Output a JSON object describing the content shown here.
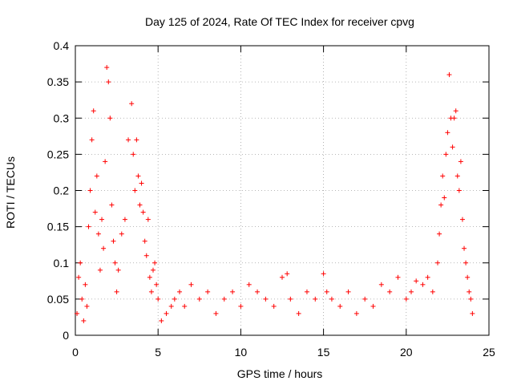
{
  "chart_data": {
    "type": "scatter",
    "title": "Day 125 of 2024, Rate Of TEC Index for receiver cpvg",
    "xlabel": "GPS time / hours",
    "ylabel": "ROTI / TECUs",
    "xlim": [
      0,
      25
    ],
    "ylim": [
      0,
      0.4
    ],
    "xticks": [
      0,
      5,
      10,
      15,
      20,
      25
    ],
    "xtick_labels": [
      "0",
      "5",
      "10",
      "15",
      "20",
      "25"
    ],
    "yticks": [
      0,
      0.05,
      0.1,
      0.15,
      0.2,
      0.25,
      0.3,
      0.35,
      0.4
    ],
    "ytick_labels": [
      "0",
      "0.05",
      "0.1",
      "0.15",
      "0.2",
      "0.25",
      "0.3",
      "0.35",
      "0.4"
    ],
    "grid": true,
    "marker": "+",
    "color": "#ff0000",
    "series": [
      {
        "name": "ROTI",
        "points": [
          [
            0.1,
            0.03
          ],
          [
            0.2,
            0.08
          ],
          [
            0.3,
            0.1
          ],
          [
            0.4,
            0.05
          ],
          [
            0.5,
            0.02
          ],
          [
            0.6,
            0.07
          ],
          [
            0.7,
            0.04
          ],
          [
            0.8,
            0.15
          ],
          [
            0.9,
            0.2
          ],
          [
            1.0,
            0.27
          ],
          [
            1.1,
            0.31
          ],
          [
            1.2,
            0.17
          ],
          [
            1.3,
            0.22
          ],
          [
            1.4,
            0.14
          ],
          [
            1.5,
            0.09
          ],
          [
            1.6,
            0.16
          ],
          [
            1.7,
            0.12
          ],
          [
            1.8,
            0.24
          ],
          [
            1.9,
            0.37
          ],
          [
            2.0,
            0.35
          ],
          [
            2.1,
            0.3
          ],
          [
            2.2,
            0.18
          ],
          [
            2.3,
            0.13
          ],
          [
            2.4,
            0.1
          ],
          [
            2.5,
            0.06
          ],
          [
            2.6,
            0.09
          ],
          [
            2.8,
            0.14
          ],
          [
            3.0,
            0.16
          ],
          [
            3.2,
            0.27
          ],
          [
            3.4,
            0.32
          ],
          [
            3.5,
            0.25
          ],
          [
            3.6,
            0.2
          ],
          [
            3.7,
            0.27
          ],
          [
            3.8,
            0.22
          ],
          [
            3.9,
            0.18
          ],
          [
            4.0,
            0.21
          ],
          [
            4.1,
            0.17
          ],
          [
            4.2,
            0.13
          ],
          [
            4.3,
            0.11
          ],
          [
            4.4,
            0.16
          ],
          [
            4.5,
            0.08
          ],
          [
            4.6,
            0.06
          ],
          [
            4.7,
            0.09
          ],
          [
            4.8,
            0.1
          ],
          [
            4.9,
            0.07
          ],
          [
            5.0,
            0.05
          ],
          [
            5.2,
            0.02
          ],
          [
            5.5,
            0.03
          ],
          [
            5.8,
            0.04
          ],
          [
            6.0,
            0.05
          ],
          [
            6.3,
            0.06
          ],
          [
            6.6,
            0.04
          ],
          [
            7.0,
            0.07
          ],
          [
            7.5,
            0.05
          ],
          [
            8.0,
            0.06
          ],
          [
            8.5,
            0.03
          ],
          [
            9.0,
            0.05
          ],
          [
            9.5,
            0.06
          ],
          [
            10.0,
            0.04
          ],
          [
            10.5,
            0.07
          ],
          [
            11.0,
            0.06
          ],
          [
            11.5,
            0.05
          ],
          [
            12.0,
            0.04
          ],
          [
            12.5,
            0.08
          ],
          [
            12.8,
            0.085
          ],
          [
            13.0,
            0.05
          ],
          [
            13.5,
            0.03
          ],
          [
            14.0,
            0.06
          ],
          [
            14.5,
            0.05
          ],
          [
            15.0,
            0.085
          ],
          [
            15.2,
            0.06
          ],
          [
            15.5,
            0.05
          ],
          [
            16.0,
            0.04
          ],
          [
            16.5,
            0.06
          ],
          [
            17.0,
            0.03
          ],
          [
            17.5,
            0.05
          ],
          [
            18.0,
            0.04
          ],
          [
            18.5,
            0.07
          ],
          [
            19.0,
            0.06
          ],
          [
            19.5,
            0.08
          ],
          [
            20.0,
            0.05
          ],
          [
            20.3,
            0.06
          ],
          [
            20.6,
            0.075
          ],
          [
            21.0,
            0.07
          ],
          [
            21.3,
            0.08
          ],
          [
            21.6,
            0.06
          ],
          [
            21.9,
            0.1
          ],
          [
            22.0,
            0.14
          ],
          [
            22.1,
            0.18
          ],
          [
            22.2,
            0.22
          ],
          [
            22.3,
            0.19
          ],
          [
            22.4,
            0.25
          ],
          [
            22.5,
            0.28
          ],
          [
            22.6,
            0.36
          ],
          [
            22.7,
            0.3
          ],
          [
            22.8,
            0.26
          ],
          [
            22.9,
            0.3
          ],
          [
            23.0,
            0.31
          ],
          [
            23.1,
            0.22
          ],
          [
            23.2,
            0.2
          ],
          [
            23.3,
            0.24
          ],
          [
            23.4,
            0.16
          ],
          [
            23.5,
            0.12
          ],
          [
            23.6,
            0.1
          ],
          [
            23.7,
            0.08
          ],
          [
            23.8,
            0.06
          ],
          [
            23.9,
            0.05
          ],
          [
            24.0,
            0.03
          ]
        ]
      }
    ]
  }
}
